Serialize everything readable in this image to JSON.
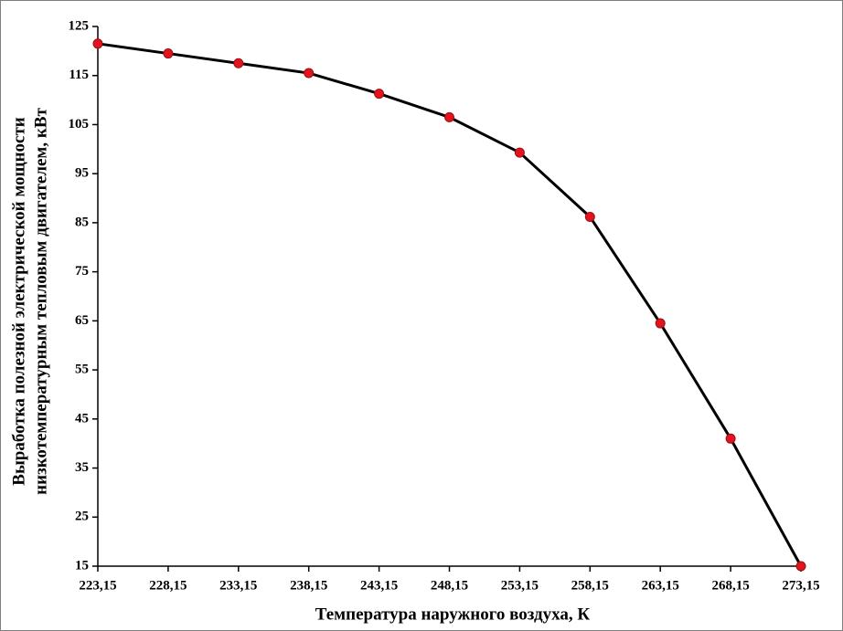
{
  "chart_data": {
    "type": "line",
    "x_label": "Температура наружного воздуха, К",
    "y_label": [
      "Выработка полезной электрической мощности",
      "низкотемпературным тепловым двигателем, кВт"
    ],
    "x": [
      223.15,
      228.15,
      233.15,
      238.15,
      243.15,
      248.15,
      253.15,
      258.15,
      263.15,
      268.15,
      273.15
    ],
    "values": [
      121.5,
      119.5,
      117.5,
      115.5,
      111.3,
      106.5,
      99.3,
      86.2,
      64.5,
      41,
      15
    ],
    "color": "#000000",
    "marker_color": "#e3141e",
    "xlim": [
      223.15,
      273.15
    ],
    "xticks": [
      {
        "value": 223.15,
        "label": "223,15"
      },
      {
        "value": 228.15,
        "label": "228,15"
      },
      {
        "value": 233.15,
        "label": "233,15"
      },
      {
        "value": 238.15,
        "label": "238,15"
      },
      {
        "value": 243.15,
        "label": "243,15"
      },
      {
        "value": 248.15,
        "label": "248,15"
      },
      {
        "value": 253.15,
        "label": "253,15"
      },
      {
        "value": 258.15,
        "label": "258,15"
      },
      {
        "value": 263.15,
        "label": "263,15"
      },
      {
        "value": 268.15,
        "label": "268,15"
      },
      {
        "value": 273.15,
        "label": "273,15"
      }
    ],
    "ylim": [
      15,
      125
    ],
    "yticks": [
      15,
      25,
      35,
      45,
      55,
      65,
      75,
      85,
      95,
      105,
      115,
      125
    ],
    "grid": false
  }
}
